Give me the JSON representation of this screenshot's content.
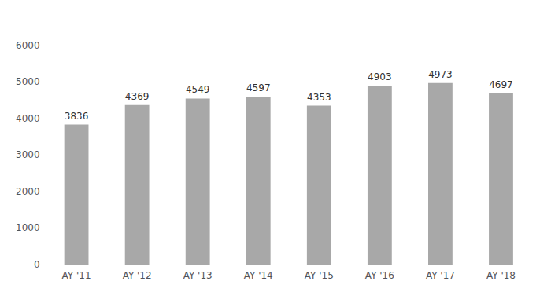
{
  "chart_data": {
    "type": "bar",
    "categories": [
      "AY '11",
      "AY '12",
      "AY '13",
      "AY '14",
      "AY '15",
      "AY '16",
      "AY '17",
      "AY '18"
    ],
    "values": [
      3836,
      4369,
      4549,
      4597,
      4353,
      4903,
      4973,
      4697
    ],
    "color": "#a8a8a8",
    "ylim": [
      0,
      6600
    ],
    "yticks": [
      0,
      1000,
      2000,
      3000,
      4000,
      5000,
      6000
    ],
    "grid": false,
    "data_labels": true
  }
}
